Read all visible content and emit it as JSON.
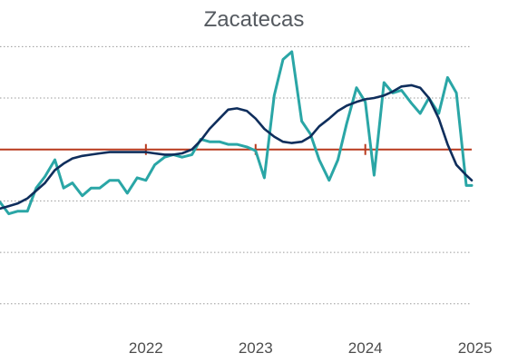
{
  "chart_data": {
    "type": "line",
    "title": "Zacatecas",
    "xlabel": "",
    "ylabel": "",
    "x_tick_labels": [
      {
        "label": "2022",
        "x": 2022.0
      },
      {
        "label": "2023",
        "x": 2023.0
      },
      {
        "label": "2024",
        "x": 2024.0
      },
      {
        "label": "2025",
        "x": 2025.0
      }
    ],
    "x_range": [
      2020.67,
      2024.97
    ],
    "y_range": [
      -8.3,
      4.4
    ],
    "y_gridlines": [
      -6,
      -4,
      -2,
      0,
      2,
      4
    ],
    "grid": "horizontal dotted",
    "reference_line": {
      "y": 0,
      "color": "#b83a1e",
      "tick_marks_at": [
        2022.0,
        2023.0,
        2024.0
      ]
    },
    "series": [
      {
        "name": "",
        "color": "#2aa6a6",
        "x": [
          2020.67,
          2020.75,
          2020.83,
          2020.92,
          2021.0,
          2021.08,
          2021.17,
          2021.25,
          2021.33,
          2021.42,
          2021.5,
          2021.58,
          2021.67,
          2021.75,
          2021.83,
          2021.92,
          2022.0,
          2022.08,
          2022.17,
          2022.25,
          2022.33,
          2022.42,
          2022.5,
          2022.58,
          2022.67,
          2022.75,
          2022.83,
          2022.92,
          2023.0,
          2023.08,
          2023.17,
          2023.25,
          2023.33,
          2023.42,
          2023.5,
          2023.58,
          2023.67,
          2023.75,
          2023.83,
          2023.92,
          2024.0,
          2024.08,
          2024.17,
          2024.25,
          2024.33,
          2024.42,
          2024.5,
          2024.58,
          2024.67,
          2024.75,
          2024.83,
          2024.92,
          2024.97
        ],
        "y": [
          -2.05,
          -2.5,
          -2.4,
          -2.4,
          -1.5,
          -1.05,
          -0.4,
          -1.5,
          -1.3,
          -1.8,
          -1.5,
          -1.5,
          -1.2,
          -1.2,
          -1.7,
          -1.1,
          -1.2,
          -0.6,
          -0.3,
          -0.2,
          -0.3,
          -0.2,
          0.4,
          0.3,
          0.3,
          0.2,
          0.2,
          0.1,
          -0.05,
          -1.1,
          2.1,
          3.5,
          3.8,
          1.1,
          0.6,
          -0.4,
          -1.2,
          -0.4,
          1.0,
          2.4,
          1.85,
          -1.0,
          2.6,
          2.2,
          2.3,
          1.8,
          1.4,
          2.0,
          1.4,
          2.8,
          2.2,
          -1.4,
          -1.4
        ]
      },
      {
        "name": "",
        "color": "#0f2e5c",
        "x": [
          2020.67,
          2020.75,
          2020.83,
          2020.92,
          2021.0,
          2021.08,
          2021.17,
          2021.25,
          2021.33,
          2021.42,
          2021.5,
          2021.58,
          2021.67,
          2021.75,
          2021.83,
          2021.92,
          2022.0,
          2022.08,
          2022.17,
          2022.25,
          2022.33,
          2022.42,
          2022.5,
          2022.58,
          2022.67,
          2022.75,
          2022.83,
          2022.92,
          2023.0,
          2023.08,
          2023.17,
          2023.25,
          2023.33,
          2023.42,
          2023.5,
          2023.58,
          2023.67,
          2023.75,
          2023.83,
          2023.92,
          2024.0,
          2024.08,
          2024.17,
          2024.25,
          2024.33,
          2024.42,
          2024.5,
          2024.58,
          2024.67,
          2024.75,
          2024.83,
          2024.92,
          2024.97
        ],
        "y": [
          -2.3,
          -2.2,
          -2.1,
          -1.9,
          -1.6,
          -1.3,
          -0.8,
          -0.55,
          -0.35,
          -0.25,
          -0.2,
          -0.15,
          -0.1,
          -0.1,
          -0.1,
          -0.1,
          -0.1,
          -0.15,
          -0.2,
          -0.2,
          -0.15,
          0.0,
          0.35,
          0.8,
          1.2,
          1.55,
          1.6,
          1.5,
          1.2,
          0.8,
          0.5,
          0.3,
          0.25,
          0.3,
          0.5,
          0.9,
          1.2,
          1.5,
          1.7,
          1.85,
          1.95,
          2.0,
          2.1,
          2.25,
          2.45,
          2.5,
          2.4,
          2.0,
          1.2,
          0.2,
          -0.6,
          -1.0,
          -1.2
        ]
      }
    ]
  }
}
